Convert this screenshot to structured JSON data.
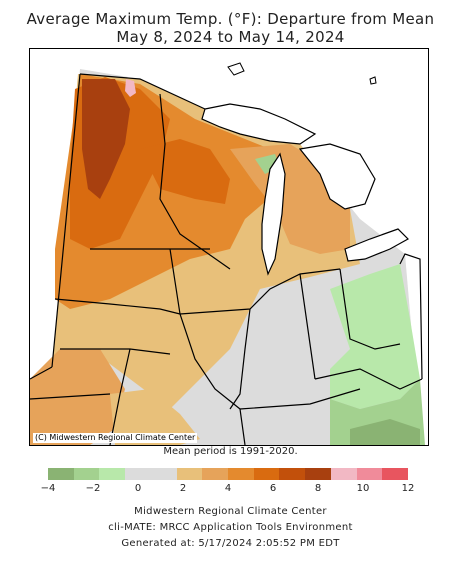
{
  "title": {
    "line1": "Average Maximum Temp. (°F): Departure from Mean",
    "line2": "May 8, 2024 to May 14, 2024"
  },
  "map": {
    "copyright": "(C) Midwestern Regional Climate Center",
    "mean_period": "Mean period is 1991-2020.",
    "icons": [
      "state-boundary-lines",
      "great-lakes-water"
    ]
  },
  "legend": {
    "colors": [
      "#8ab373",
      "#a3d18f",
      "#b8e8aa",
      "#dcdcdc",
      "#dcdcdc",
      "#e8c07a",
      "#e6a35a",
      "#e48a2e",
      "#d96b10",
      "#c2500b",
      "#a8400f",
      "#f2b8c4",
      "#f08b9a",
      "#e8555f"
    ],
    "ticks": [
      "−4",
      "−2",
      "0",
      "2",
      "4",
      "6",
      "8",
      "10",
      "12"
    ],
    "min": -4,
    "max": 12,
    "step": 1.1428
  },
  "footer": {
    "line1": "Midwestern Regional Climate Center",
    "line2": "cli-MATE: MRCC Application Tools Environment",
    "line3": "Generated at: 5/17/2024 2:05:52 PM EDT"
  }
}
